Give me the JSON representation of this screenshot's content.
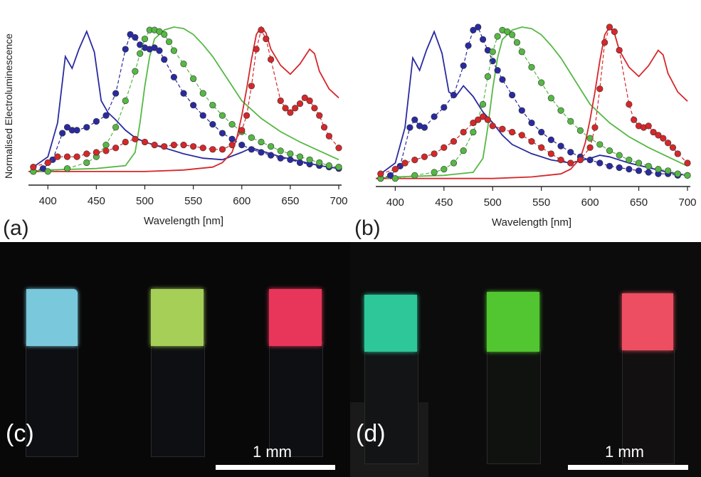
{
  "chart_data": [
    {
      "panel": "(a)",
      "type": "line",
      "xlabel": "Wavelength [nm]",
      "ylabel": "Normalised Electroluminescence",
      "xlim": [
        380,
        700
      ],
      "ylim": [
        0,
        1
      ],
      "xticks": [
        400,
        450,
        500,
        550,
        600,
        650,
        700
      ],
      "series": [
        {
          "color": "#2a2aa0",
          "style": "solid",
          "x": [
            385,
            400,
            410,
            418,
            425,
            432,
            440,
            448,
            455,
            462,
            470,
            480,
            490,
            500,
            510,
            520,
            540,
            560,
            580,
            600,
            610,
            620,
            640,
            660,
            680,
            700
          ],
          "y": [
            0.05,
            0.12,
            0.35,
            0.8,
            0.72,
            0.85,
            0.97,
            0.83,
            0.5,
            0.42,
            0.37,
            0.3,
            0.25,
            0.22,
            0.2,
            0.18,
            0.14,
            0.11,
            0.1,
            0.15,
            0.18,
            0.16,
            0.12,
            0.09,
            0.06,
            0.04
          ]
        },
        {
          "color": "#2a2aa0",
          "style": "dots",
          "x": [
            385,
            395,
            405,
            415,
            420,
            425,
            430,
            440,
            450,
            460,
            470,
            480,
            485,
            490,
            495,
            500,
            505,
            510,
            515,
            520,
            530,
            540,
            550,
            560,
            570,
            580,
            590,
            600,
            610,
            620,
            630,
            640,
            650,
            660,
            670,
            680,
            690,
            700
          ],
          "y": [
            0.02,
            0.04,
            0.1,
            0.28,
            0.32,
            0.3,
            0.3,
            0.32,
            0.36,
            0.4,
            0.55,
            0.85,
            0.95,
            0.93,
            0.88,
            0.86,
            0.85,
            0.86,
            0.84,
            0.78,
            0.66,
            0.55,
            0.47,
            0.4,
            0.34,
            0.28,
            0.24,
            0.2,
            0.17,
            0.15,
            0.13,
            0.11,
            0.1,
            0.08,
            0.07,
            0.06,
            0.05,
            0.04
          ]
        },
        {
          "color": "#55b844",
          "style": "solid",
          "x": [
            380,
            400,
            450,
            480,
            490,
            495,
            500,
            505,
            510,
            520,
            530,
            540,
            550,
            560,
            570,
            580,
            590,
            600,
            620,
            640,
            660,
            680,
            700
          ],
          "y": [
            0.02,
            0.03,
            0.04,
            0.06,
            0.15,
            0.35,
            0.6,
            0.8,
            0.92,
            0.98,
            1.0,
            0.99,
            0.95,
            0.88,
            0.8,
            0.7,
            0.6,
            0.5,
            0.38,
            0.29,
            0.22,
            0.16,
            0.1
          ]
        },
        {
          "color": "#55b844",
          "style": "dots",
          "x": [
            385,
            400,
            420,
            440,
            450,
            460,
            470,
            480,
            490,
            495,
            500,
            505,
            510,
            515,
            520,
            525,
            530,
            540,
            550,
            560,
            570,
            580,
            590,
            600,
            610,
            620,
            630,
            640,
            650,
            660,
            670,
            680,
            690,
            700
          ],
          "y": [
            0.02,
            0.02,
            0.04,
            0.08,
            0.12,
            0.2,
            0.32,
            0.5,
            0.7,
            0.82,
            0.92,
            0.98,
            0.98,
            0.97,
            0.95,
            0.9,
            0.84,
            0.75,
            0.65,
            0.55,
            0.47,
            0.4,
            0.34,
            0.29,
            0.25,
            0.22,
            0.19,
            0.16,
            0.14,
            0.12,
            0.1,
            0.08,
            0.06,
            0.05
          ]
        },
        {
          "color": "#d6272a",
          "style": "solid",
          "x": [
            380,
            420,
            460,
            500,
            540,
            570,
            580,
            590,
            595,
            600,
            605,
            610,
            615,
            620,
            625,
            630,
            640,
            650,
            660,
            670,
            675,
            680,
            690,
            700
          ],
          "y": [
            0.02,
            0.02,
            0.02,
            0.02,
            0.03,
            0.05,
            0.08,
            0.15,
            0.25,
            0.4,
            0.58,
            0.78,
            0.95,
            1.0,
            0.96,
            0.85,
            0.74,
            0.68,
            0.75,
            0.85,
            0.82,
            0.7,
            0.58,
            0.52
          ]
        },
        {
          "color": "#d6272a",
          "style": "dots",
          "x": [
            385,
            400,
            410,
            420,
            430,
            440,
            450,
            460,
            470,
            480,
            490,
            500,
            510,
            520,
            530,
            540,
            550,
            560,
            570,
            580,
            590,
            600,
            605,
            610,
            615,
            620,
            625,
            630,
            640,
            645,
            650,
            655,
            660,
            665,
            670,
            675,
            680,
            685,
            690,
            700
          ],
          "y": [
            0.05,
            0.08,
            0.12,
            0.12,
            0.12,
            0.14,
            0.15,
            0.16,
            0.18,
            0.22,
            0.24,
            0.22,
            0.2,
            0.19,
            0.2,
            0.2,
            0.19,
            0.18,
            0.17,
            0.17,
            0.2,
            0.3,
            0.4,
            0.6,
            0.85,
            0.98,
            0.92,
            0.78,
            0.5,
            0.45,
            0.42,
            0.45,
            0.48,
            0.52,
            0.5,
            0.45,
            0.4,
            0.32,
            0.26,
            0.18
          ]
        }
      ]
    },
    {
      "panel": "(b)",
      "type": "line",
      "xlabel": "Wavelength [nm]",
      "ylabel": "",
      "xlim": [
        380,
        700
      ],
      "ylim": [
        0,
        1
      ],
      "xticks": [
        400,
        450,
        500,
        550,
        600,
        650,
        700
      ],
      "series": [
        {
          "color": "#2a2aa0",
          "style": "solid",
          "x": [
            385,
            400,
            410,
            418,
            425,
            432,
            440,
            448,
            455,
            462,
            470,
            480,
            490,
            500,
            510,
            520,
            540,
            560,
            580,
            600,
            610,
            620,
            640,
            660,
            680,
            700
          ],
          "y": [
            0.05,
            0.12,
            0.35,
            0.8,
            0.72,
            0.85,
            0.97,
            0.83,
            0.58,
            0.55,
            0.62,
            0.55,
            0.45,
            0.38,
            0.3,
            0.24,
            0.18,
            0.14,
            0.12,
            0.15,
            0.17,
            0.16,
            0.12,
            0.09,
            0.06,
            0.04
          ]
        },
        {
          "color": "#2a2aa0",
          "style": "dots",
          "x": [
            385,
            395,
            405,
            415,
            420,
            425,
            430,
            440,
            450,
            460,
            470,
            475,
            480,
            485,
            490,
            495,
            500,
            505,
            510,
            520,
            530,
            540,
            550,
            560,
            570,
            580,
            590,
            600,
            610,
            620,
            630,
            640,
            650,
            660,
            670,
            680,
            690,
            700
          ],
          "y": [
            0.02,
            0.04,
            0.1,
            0.35,
            0.4,
            0.36,
            0.35,
            0.42,
            0.48,
            0.56,
            0.75,
            0.88,
            0.98,
            1.0,
            0.92,
            0.85,
            0.78,
            0.72,
            0.66,
            0.56,
            0.46,
            0.38,
            0.32,
            0.27,
            0.23,
            0.19,
            0.16,
            0.14,
            0.12,
            0.1,
            0.09,
            0.08,
            0.07,
            0.06,
            0.05,
            0.05,
            0.04,
            0.04
          ]
        },
        {
          "color": "#55b844",
          "style": "solid",
          "x": [
            380,
            400,
            450,
            480,
            490,
            495,
            500,
            505,
            510,
            520,
            530,
            540,
            550,
            560,
            570,
            580,
            590,
            600,
            620,
            640,
            660,
            680,
            700
          ],
          "y": [
            0.02,
            0.03,
            0.04,
            0.06,
            0.15,
            0.35,
            0.6,
            0.8,
            0.92,
            0.98,
            1.0,
            0.99,
            0.95,
            0.88,
            0.8,
            0.7,
            0.6,
            0.5,
            0.38,
            0.29,
            0.22,
            0.16,
            0.1
          ]
        },
        {
          "color": "#55b844",
          "style": "dots",
          "x": [
            385,
            400,
            420,
            440,
            450,
            460,
            470,
            480,
            490,
            495,
            500,
            505,
            510,
            515,
            520,
            525,
            530,
            540,
            550,
            560,
            570,
            580,
            590,
            600,
            610,
            620,
            630,
            640,
            650,
            660,
            670,
            680,
            690,
            700
          ],
          "y": [
            0.02,
            0.02,
            0.04,
            0.06,
            0.08,
            0.12,
            0.2,
            0.32,
            0.5,
            0.68,
            0.84,
            0.94,
            0.98,
            0.97,
            0.95,
            0.9,
            0.84,
            0.74,
            0.64,
            0.54,
            0.46,
            0.39,
            0.33,
            0.28,
            0.24,
            0.2,
            0.17,
            0.14,
            0.12,
            0.1,
            0.08,
            0.07,
            0.05,
            0.04
          ]
        },
        {
          "color": "#d6272a",
          "style": "solid",
          "x": [
            380,
            420,
            460,
            500,
            540,
            570,
            580,
            590,
            595,
            600,
            605,
            610,
            615,
            620,
            625,
            630,
            640,
            650,
            660,
            670,
            675,
            680,
            690,
            700
          ],
          "y": [
            0.02,
            0.02,
            0.02,
            0.02,
            0.03,
            0.05,
            0.08,
            0.15,
            0.25,
            0.4,
            0.58,
            0.78,
            0.95,
            1.0,
            0.96,
            0.85,
            0.74,
            0.68,
            0.75,
            0.85,
            0.82,
            0.7,
            0.58,
            0.52
          ]
        },
        {
          "color": "#d6272a",
          "style": "dots",
          "x": [
            385,
            400,
            410,
            420,
            430,
            440,
            450,
            460,
            470,
            480,
            485,
            490,
            495,
            500,
            510,
            520,
            530,
            540,
            550,
            560,
            570,
            580,
            590,
            600,
            605,
            610,
            615,
            620,
            625,
            630,
            640,
            645,
            650,
            655,
            660,
            665,
            670,
            675,
            680,
            685,
            690,
            700
          ],
          "y": [
            0.05,
            0.08,
            0.12,
            0.14,
            0.16,
            0.18,
            0.22,
            0.26,
            0.32,
            0.38,
            0.4,
            0.42,
            0.4,
            0.36,
            0.34,
            0.32,
            0.3,
            0.26,
            0.22,
            0.18,
            0.14,
            0.12,
            0.14,
            0.22,
            0.35,
            0.6,
            0.9,
            1.0,
            0.97,
            0.85,
            0.5,
            0.4,
            0.36,
            0.35,
            0.36,
            0.32,
            0.3,
            0.28,
            0.25,
            0.22,
            0.18,
            0.12
          ]
        }
      ]
    }
  ],
  "panels": {
    "a": {
      "label": "(a)"
    },
    "b": {
      "label": "(b)"
    },
    "c": {
      "label": "(c)",
      "scale_text": "1 mm",
      "squares": [
        "#7ac8dc",
        "#a6cf58",
        "#e8365a"
      ]
    },
    "d": {
      "label": "(d)",
      "scale_text": "1 mm",
      "squares": [
        "#2ec79a",
        "#52c630",
        "#ee4e62"
      ]
    }
  }
}
